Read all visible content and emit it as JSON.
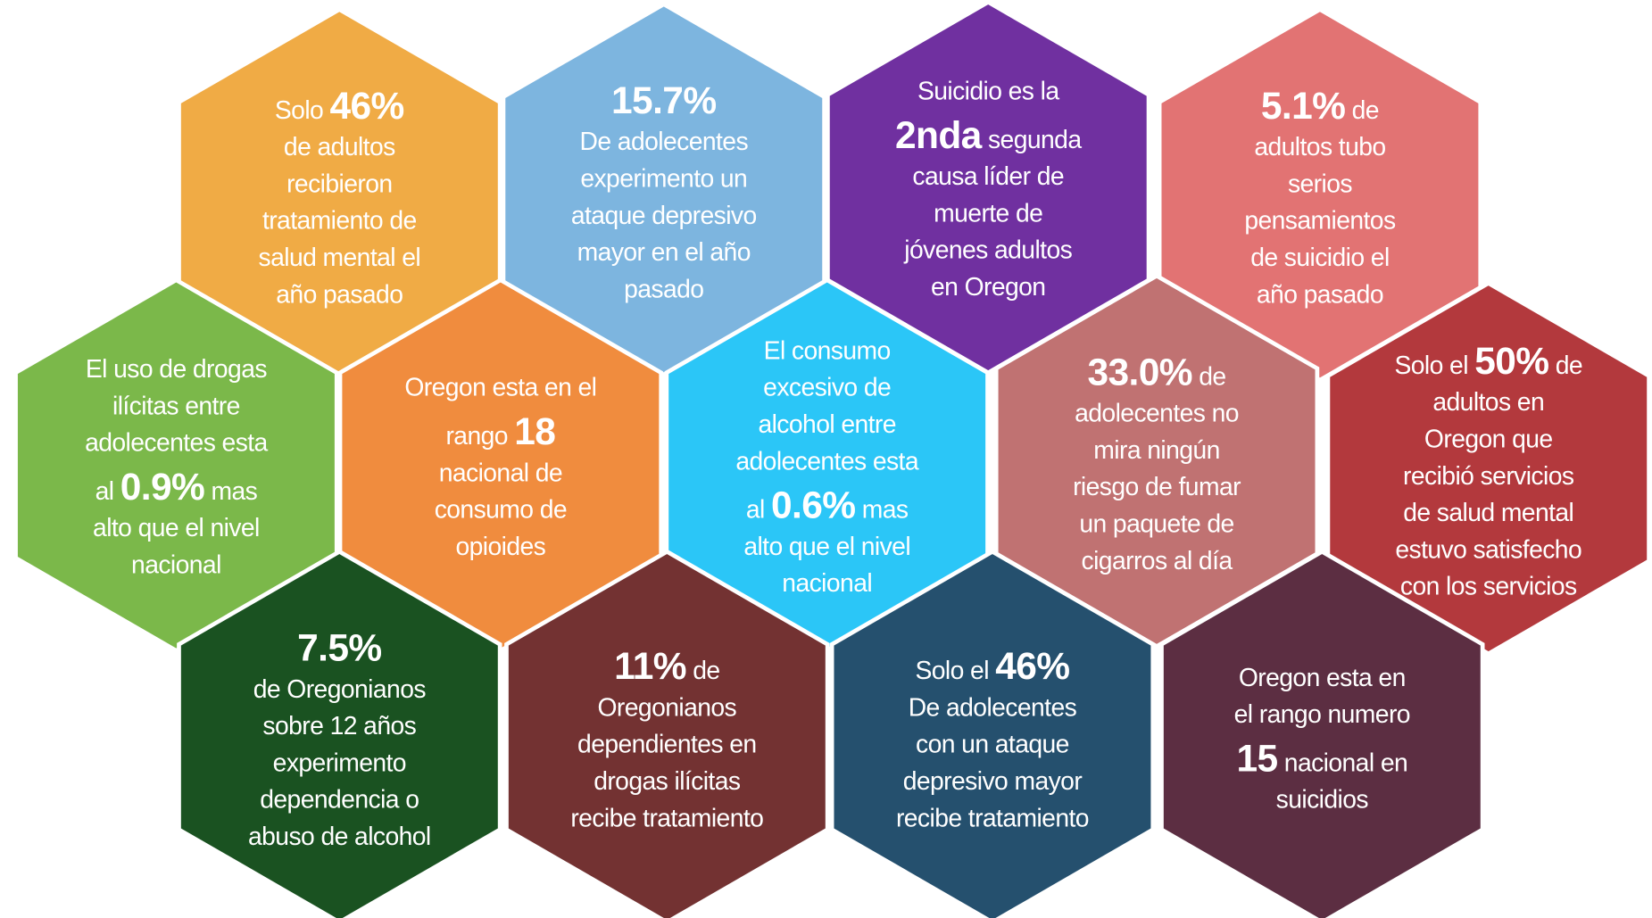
{
  "hexes": [
    {
      "color": "#f0ab45",
      "lines": [
        [
          "Solo ",
          {
            "strong": "46%"
          }
        ],
        [
          "de adultos"
        ],
        [
          "recibieron"
        ],
        [
          "tratamiento de"
        ],
        [
          "salud mental el"
        ],
        [
          "año pasado"
        ]
      ]
    },
    {
      "color": "#7db5df",
      "lines": [
        [
          {
            "strong": "15.7%"
          }
        ],
        [
          "De adolecentes"
        ],
        [
          "experimento un"
        ],
        [
          "ataque depresivo"
        ],
        [
          "mayor en el año"
        ],
        [
          "pasado"
        ]
      ]
    },
    {
      "color": "#7030a0",
      "lines": [
        [
          "Suicidio es la"
        ],
        [
          {
            "strong": "2nda"
          },
          " segunda"
        ],
        [
          "causa líder de"
        ],
        [
          "muerte de"
        ],
        [
          "jóvenes adultos"
        ],
        [
          "en Oregon"
        ]
      ]
    },
    {
      "color": "#e27373",
      "lines": [
        [
          {
            "strong": "5.1%"
          },
          " de"
        ],
        [
          "adultos tubo"
        ],
        [
          "serios"
        ],
        [
          "pensamientos"
        ],
        [
          "de suicidio el"
        ],
        [
          "año pasado"
        ]
      ]
    },
    {
      "color": "#7bb84a",
      "lines": [
        [
          "El uso de drogas"
        ],
        [
          "ilícitas entre"
        ],
        [
          "adolecentes esta"
        ],
        [
          "al ",
          {
            "strong": "0.9%"
          },
          " mas"
        ],
        [
          "alto que el nivel"
        ],
        [
          "nacional"
        ]
      ]
    },
    {
      "color": "#f08c3e",
      "lines": [
        [
          "Oregon esta en el"
        ],
        [
          "rango ",
          {
            "strong": "18"
          }
        ],
        [
          "nacional de"
        ],
        [
          "consumo de"
        ],
        [
          "opioides"
        ]
      ]
    },
    {
      "color": "#2bc6f7",
      "lines": [
        [
          "El consumo"
        ],
        [
          "excesivo de"
        ],
        [
          "alcohol entre"
        ],
        [
          "adolecentes esta"
        ],
        [
          "al ",
          {
            "strong": "0.6%"
          },
          " mas"
        ],
        [
          "alto que el nivel"
        ],
        [
          "nacional"
        ]
      ]
    },
    {
      "color": "#c07272",
      "lines": [
        [
          {
            "strong": "33.0%"
          },
          " de"
        ],
        [
          "adolecentes no"
        ],
        [
          "mira ningún"
        ],
        [
          "riesgo de fumar"
        ],
        [
          "un paquete de"
        ],
        [
          "cigarros al día"
        ]
      ]
    },
    {
      "color": "#b3393d",
      "lines": [
        [
          "Solo el ",
          {
            "strong": "50%"
          },
          " de"
        ],
        [
          "adultos en"
        ],
        [
          "Oregon que"
        ],
        [
          "recibió servicios"
        ],
        [
          "de salud mental"
        ],
        [
          "estuvo satisfecho"
        ],
        [
          "con los servicios"
        ]
      ]
    },
    {
      "color": "#1a5221",
      "lines": [
        [
          {
            "strong": "7.5%"
          }
        ],
        [
          "de Oregonianos"
        ],
        [
          "sobre 12 años"
        ],
        [
          "experimento"
        ],
        [
          "dependencia o"
        ],
        [
          "abuso de alcohol"
        ]
      ]
    },
    {
      "color": "#733232",
      "lines": [
        [
          {
            "strong": "11%"
          },
          " de"
        ],
        [
          "Oregonianos"
        ],
        [
          "dependientes en"
        ],
        [
          "drogas ilícitas"
        ],
        [
          "recibe tratamiento"
        ]
      ]
    },
    {
      "color": "#25506e",
      "lines": [
        [
          "Solo el ",
          {
            "strong": "46%"
          }
        ],
        [
          "De adolecentes"
        ],
        [
          "con un ataque"
        ],
        [
          "depresivo mayor"
        ],
        [
          "recibe tratamiento"
        ]
      ]
    },
    {
      "color": "#5c2e42",
      "lines": [
        [
          "Oregon esta en"
        ],
        [
          "el rango numero"
        ],
        [
          {
            "strong": "15"
          },
          " nacional en"
        ],
        [
          "suicidios"
        ]
      ]
    }
  ]
}
